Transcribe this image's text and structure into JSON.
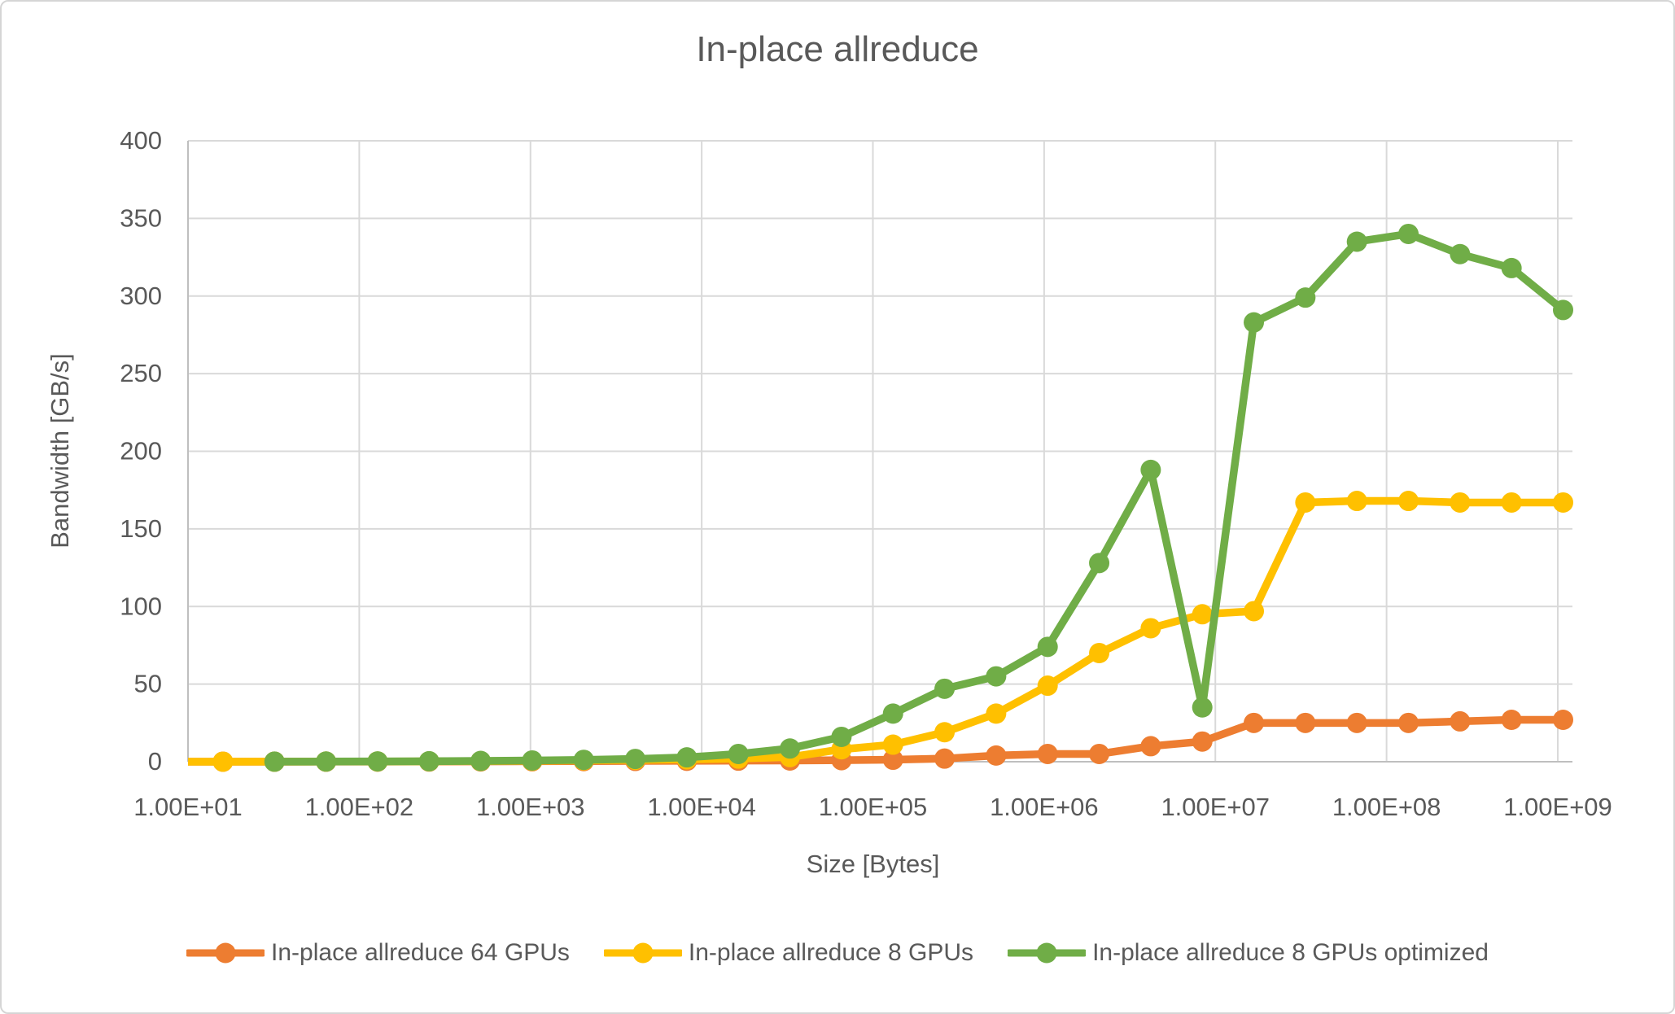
{
  "title": "In-place allreduce",
  "y_axis_label": "Bandwidth [GB/s]",
  "x_axis_label": "Size [Bytes]",
  "colors": {
    "text": "#595959",
    "gridline": "#D9D9D9",
    "axis_line": "#BFBFBF",
    "series_orange": "#ED7D31",
    "series_yellow": "#FFC000",
    "series_green": "#70AD47"
  },
  "chart_data": {
    "type": "line",
    "title": "In-place allreduce",
    "xlabel": "Size [Bytes]",
    "ylabel": "Bandwidth [GB/s]",
    "x_scale": "log10",
    "xlim": [
      10,
      1000000000
    ],
    "ylim": [
      0,
      400
    ],
    "grid": true,
    "legend_position": "bottom",
    "y_ticks": [
      0,
      50,
      100,
      150,
      200,
      250,
      300,
      350,
      400
    ],
    "x_tick_labels": [
      "1.00E+01",
      "1.00E+02",
      "1.00E+03",
      "1.00E+04",
      "1.00E+05",
      "1.00E+06",
      "1.00E+07",
      "1.00E+08",
      "1.00E+09"
    ],
    "series": [
      {
        "name": "In-place allreduce 64 GPUs",
        "color": "#ED7D31",
        "x": [
          8,
          16,
          32,
          64,
          128,
          256,
          512,
          1024,
          2048,
          4096,
          8192,
          16384,
          32768,
          65536,
          131072,
          262144,
          524288,
          1048576,
          2097152,
          4194304,
          8388608,
          16777216,
          33554432,
          67108864,
          134217728,
          268435456,
          536870912,
          1073741824
        ],
        "y": [
          0.01,
          0.02,
          0.03,
          0.05,
          0.08,
          0.12,
          0.2,
          0.3,
          0.4,
          0.5,
          0.6,
          0.7,
          0.8,
          1,
          1.3,
          2,
          4,
          5,
          5,
          10,
          13,
          25,
          25,
          25,
          25,
          26,
          27,
          27
        ]
      },
      {
        "name": "In-place allreduce 8 GPUs",
        "color": "#FFC000",
        "x": [
          8,
          16,
          32,
          64,
          128,
          256,
          512,
          1024,
          2048,
          4096,
          8192,
          16384,
          32768,
          65536,
          131072,
          262144,
          524288,
          1048576,
          2097152,
          4194304,
          8388608,
          16777216,
          33554432,
          67108864,
          134217728,
          268435456,
          536870912,
          1073741824
        ],
        "y": [
          0.01,
          0.03,
          0.05,
          0.1,
          0.15,
          0.25,
          0.4,
          0.6,
          0.9,
          1.2,
          1.5,
          2,
          3,
          8,
          11,
          19,
          31,
          49,
          70,
          86,
          95,
          97,
          167,
          168,
          168,
          167,
          167,
          167
        ]
      },
      {
        "name": "In-place allreduce 8 GPUs optimized",
        "color": "#70AD47",
        "x": [
          32,
          64,
          128,
          256,
          512,
          1024,
          2048,
          4096,
          8192,
          16384,
          32768,
          65536,
          131072,
          262144,
          524288,
          1048576,
          2097152,
          4194304,
          8388608,
          16777216,
          33554432,
          67108864,
          134217728,
          268435456,
          536870912,
          1073741824
        ],
        "y": [
          0.05,
          0.1,
          0.2,
          0.3,
          0.5,
          0.8,
          1.2,
          1.8,
          2.8,
          5,
          8.5,
          16,
          31,
          47,
          55,
          74,
          128,
          188,
          35,
          283,
          299,
          335,
          340,
          327,
          318,
          291
        ]
      }
    ]
  }
}
